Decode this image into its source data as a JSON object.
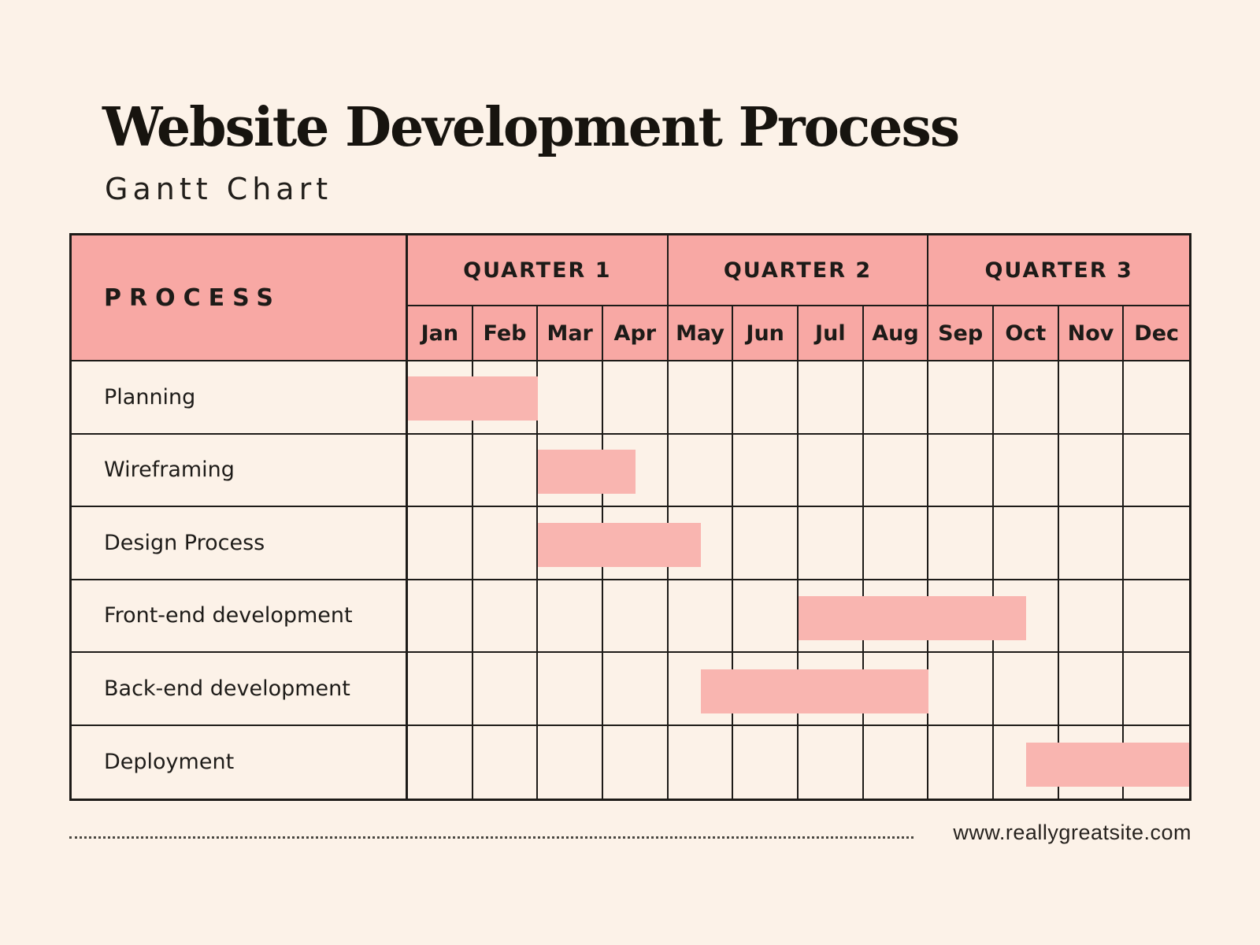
{
  "page": {
    "title": "Website Development Process",
    "subtitle": "Gantt Chart",
    "footer_url": "www.reallygreatsite.com"
  },
  "colors": {
    "background": "#fcf2e8",
    "header_pink": "#f8a8a4",
    "bar_pink": "#f9b5b0",
    "line_ink": "#1d1b18"
  },
  "chart_data": {
    "type": "gantt",
    "title": "Website Development Process",
    "subtitle": "Gantt Chart",
    "process_header": "PROCESS",
    "quarters": [
      {
        "label": "QUARTER 1",
        "months": [
          "Jan",
          "Feb",
          "Mar",
          "Apr"
        ]
      },
      {
        "label": "QUARTER 2",
        "months": [
          "May",
          "Jun",
          "Jul",
          "Aug"
        ]
      },
      {
        "label": "QUARTER 3",
        "months": [
          "Sep",
          "Oct",
          "Nov",
          "Dec"
        ]
      }
    ],
    "months": [
      "Jan",
      "Feb",
      "Mar",
      "Apr",
      "May",
      "Jun",
      "Jul",
      "Aug",
      "Sep",
      "Oct",
      "Nov",
      "Dec"
    ],
    "timeline_unit": "month-index, 0 = start of Jan, 12 = end of Dec",
    "axis_range": [
      0,
      12
    ],
    "tasks": [
      {
        "name": "Planning",
        "start": 0,
        "end": 2,
        "span_label": "Jan - Feb"
      },
      {
        "name": "Wireframing",
        "start": 2,
        "end": 3.5,
        "span_label": "Mar - mid Apr"
      },
      {
        "name": "Design Process",
        "start": 2,
        "end": 4.5,
        "span_label": "Mar - mid May"
      },
      {
        "name": "Front-end development",
        "start": 6,
        "end": 9.5,
        "span_label": "Jul - mid Oct"
      },
      {
        "name": "Back-end development",
        "start": 4.5,
        "end": 8,
        "span_label": "mid May - Aug"
      },
      {
        "name": "Deployment",
        "start": 9.5,
        "end": 12,
        "span_label": "mid Oct - Dec"
      }
    ]
  }
}
